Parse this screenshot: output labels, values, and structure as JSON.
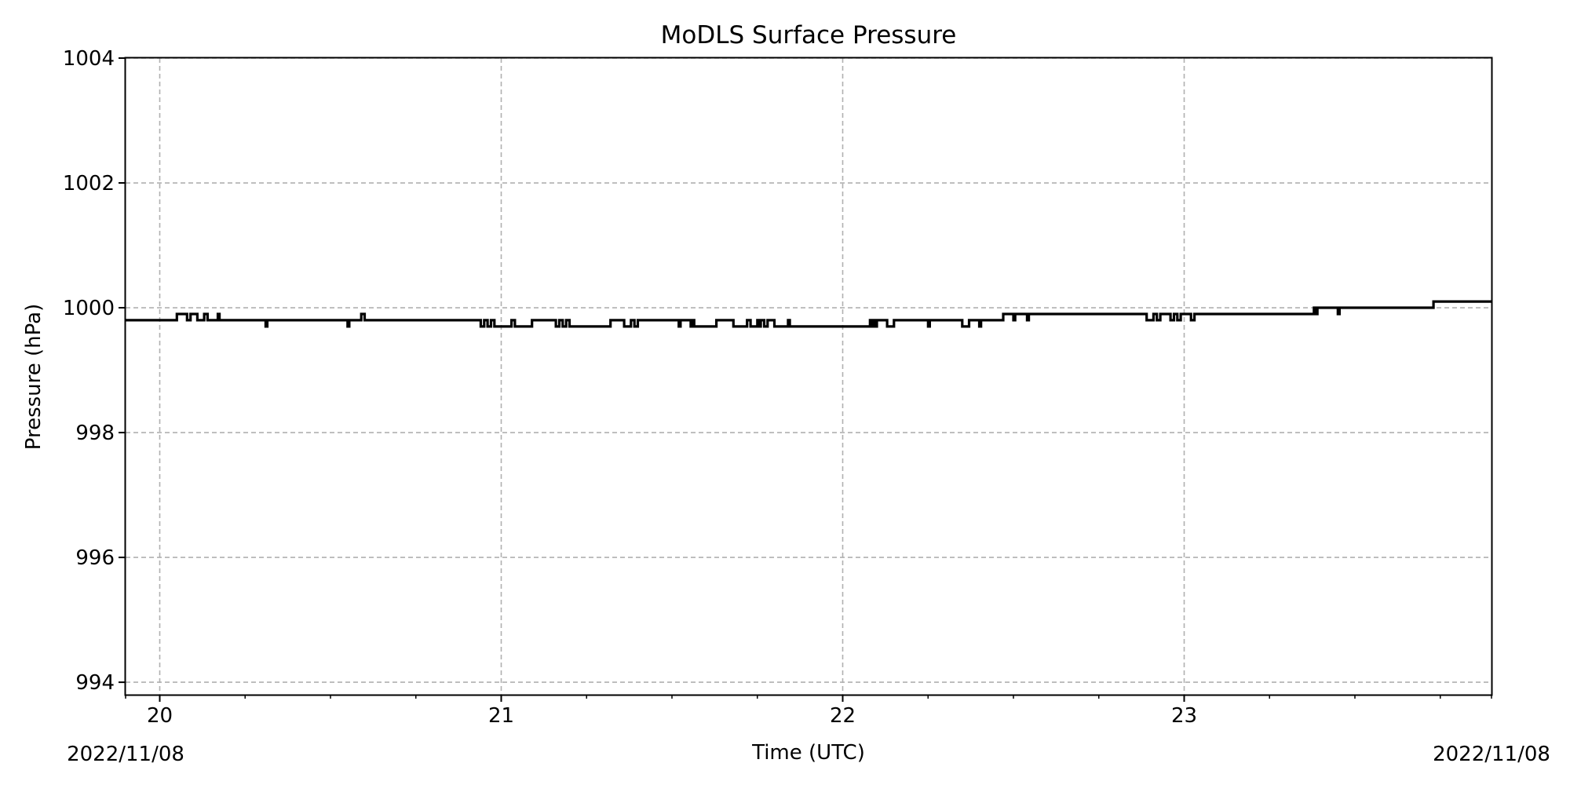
{
  "chart_data": {
    "type": "line",
    "title": "MoDLS Surface Pressure",
    "xlabel": "Time (UTC)",
    "ylabel": "Pressure (hPa)",
    "xlim": [
      19.9,
      23.9
    ],
    "ylim": [
      993.8,
      1004
    ],
    "grid": true,
    "line_style": "steps",
    "line_color": "#000000",
    "y_ticks": [
      994,
      996,
      998,
      1000,
      1002,
      1004
    ],
    "x_major_ticks": [
      20,
      21,
      22,
      23
    ],
    "x_minor_ticks": [
      19.9,
      20.25,
      20.5,
      20.75,
      21.25,
      21.5,
      21.75,
      22.25,
      22.5,
      22.75,
      23.25,
      23.5,
      23.75,
      23.9
    ],
    "y_tick_labels": [
      "994",
      "996",
      "998",
      "1000",
      "1002",
      "1004"
    ],
    "x_tick_labels": [
      "20",
      "21",
      "22",
      "23"
    ],
    "date_left": "2022/11/08",
    "date_right": "2022/11/08",
    "series": [
      {
        "x": [
          19.9,
          20.05,
          20.08,
          20.09,
          20.11,
          20.13,
          20.14,
          20.15,
          20.17,
          20.175,
          20.18,
          20.31,
          20.315,
          20.32,
          20.55,
          20.555,
          20.56,
          20.59,
          20.6,
          20.94,
          20.95,
          20.96,
          20.97,
          20.98,
          21.0,
          21.03,
          21.04,
          21.05,
          21.09,
          21.16,
          21.17,
          21.18,
          21.19,
          21.2,
          21.32,
          21.36,
          21.38,
          21.39,
          21.4,
          21.41,
          21.52,
          21.525,
          21.53,
          21.555,
          21.56,
          21.565,
          21.63,
          21.68,
          21.72,
          21.73,
          21.75,
          21.755,
          21.76,
          21.77,
          21.78,
          21.8,
          21.84,
          21.845,
          21.85,
          22.08,
          22.085,
          22.09,
          22.095,
          22.1,
          22.13,
          22.15,
          22.25,
          22.255,
          22.26,
          22.35,
          22.37,
          22.4,
          22.405,
          22.41,
          22.47,
          22.5,
          22.505,
          22.51,
          22.54,
          22.545,
          22.55,
          22.89,
          22.91,
          22.92,
          22.93,
          22.96,
          22.97,
          22.98,
          22.99,
          23.02,
          23.03,
          23.04,
          23.38,
          23.385,
          23.39,
          23.45,
          23.455,
          23.46,
          23.73,
          23.9
        ],
        "y": [
          999.8,
          999.9,
          999.8,
          999.9,
          999.8,
          999.9,
          999.8,
          999.8,
          999.9,
          999.8,
          999.8,
          999.7,
          999.8,
          999.8,
          999.7,
          999.8,
          999.8,
          999.9,
          999.8,
          999.7,
          999.8,
          999.7,
          999.8,
          999.7,
          999.7,
          999.8,
          999.7,
          999.7,
          999.8,
          999.7,
          999.8,
          999.7,
          999.8,
          999.7,
          999.8,
          999.7,
          999.8,
          999.7,
          999.8,
          999.8,
          999.7,
          999.8,
          999.8,
          999.7,
          999.8,
          999.7,
          999.8,
          999.7,
          999.8,
          999.7,
          999.8,
          999.7,
          999.8,
          999.7,
          999.8,
          999.7,
          999.8,
          999.7,
          999.7,
          999.8,
          999.7,
          999.8,
          999.7,
          999.8,
          999.7,
          999.8,
          999.7,
          999.8,
          999.8,
          999.7,
          999.8,
          999.7,
          999.8,
          999.8,
          999.9,
          999.8,
          999.9,
          999.9,
          999.8,
          999.9,
          999.9,
          999.8,
          999.9,
          999.8,
          999.9,
          999.8,
          999.9,
          999.8,
          999.9,
          999.8,
          999.9,
          999.9,
          1000.0,
          999.9,
          1000.0,
          999.9,
          1000.0,
          1000.0,
          1000.1,
          1000.1
        ]
      }
    ]
  }
}
